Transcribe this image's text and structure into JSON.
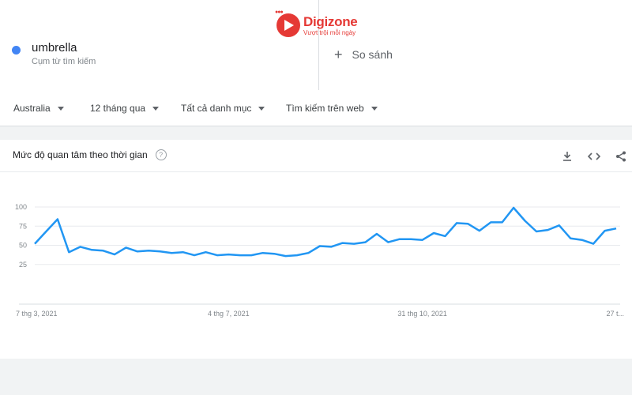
{
  "logo": {
    "name": "Digizone",
    "tagline": "Vượt trội mỗi ngày"
  },
  "search_term": {
    "name": "umbrella",
    "type": "Cụm từ tìm kiếm",
    "color": "#4285f4"
  },
  "compare": {
    "label": "So sánh"
  },
  "filters": {
    "region": "Australia",
    "period": "12 tháng qua",
    "category": "Tất cả danh mục",
    "search_type": "Tìm kiếm trên web"
  },
  "chart_card": {
    "title": "Mức độ quan tâm theo thời gian",
    "help_icon": "help-icon",
    "tools": [
      "download-icon",
      "embed-icon",
      "share-icon"
    ]
  },
  "chart_data": {
    "type": "line",
    "title": "Mức độ quan tâm theo thời gian",
    "ylim": [
      0,
      100
    ],
    "yticks": [
      25,
      50,
      75,
      100
    ],
    "grid": true,
    "color": "#2196f3",
    "xtick_labels": [
      "7 thg 3, 2021",
      "4 thg 7, 2021",
      "31 thg 10, 2021",
      "27 t..."
    ],
    "xtick_indices": [
      0,
      17,
      34,
      51
    ],
    "series": [
      {
        "values": [
          52,
          68,
          84,
          41,
          48,
          44,
          43,
          38,
          47,
          42,
          43,
          42,
          40,
          41,
          37,
          41,
          37,
          38,
          37,
          37,
          40,
          39,
          36,
          37,
          40,
          49,
          48,
          53,
          52,
          54,
          65,
          54,
          58,
          58,
          57,
          66,
          62,
          79,
          78,
          69,
          80,
          80,
          99,
          82,
          68,
          70,
          76,
          59,
          57,
          52,
          69,
          72
        ]
      }
    ]
  }
}
